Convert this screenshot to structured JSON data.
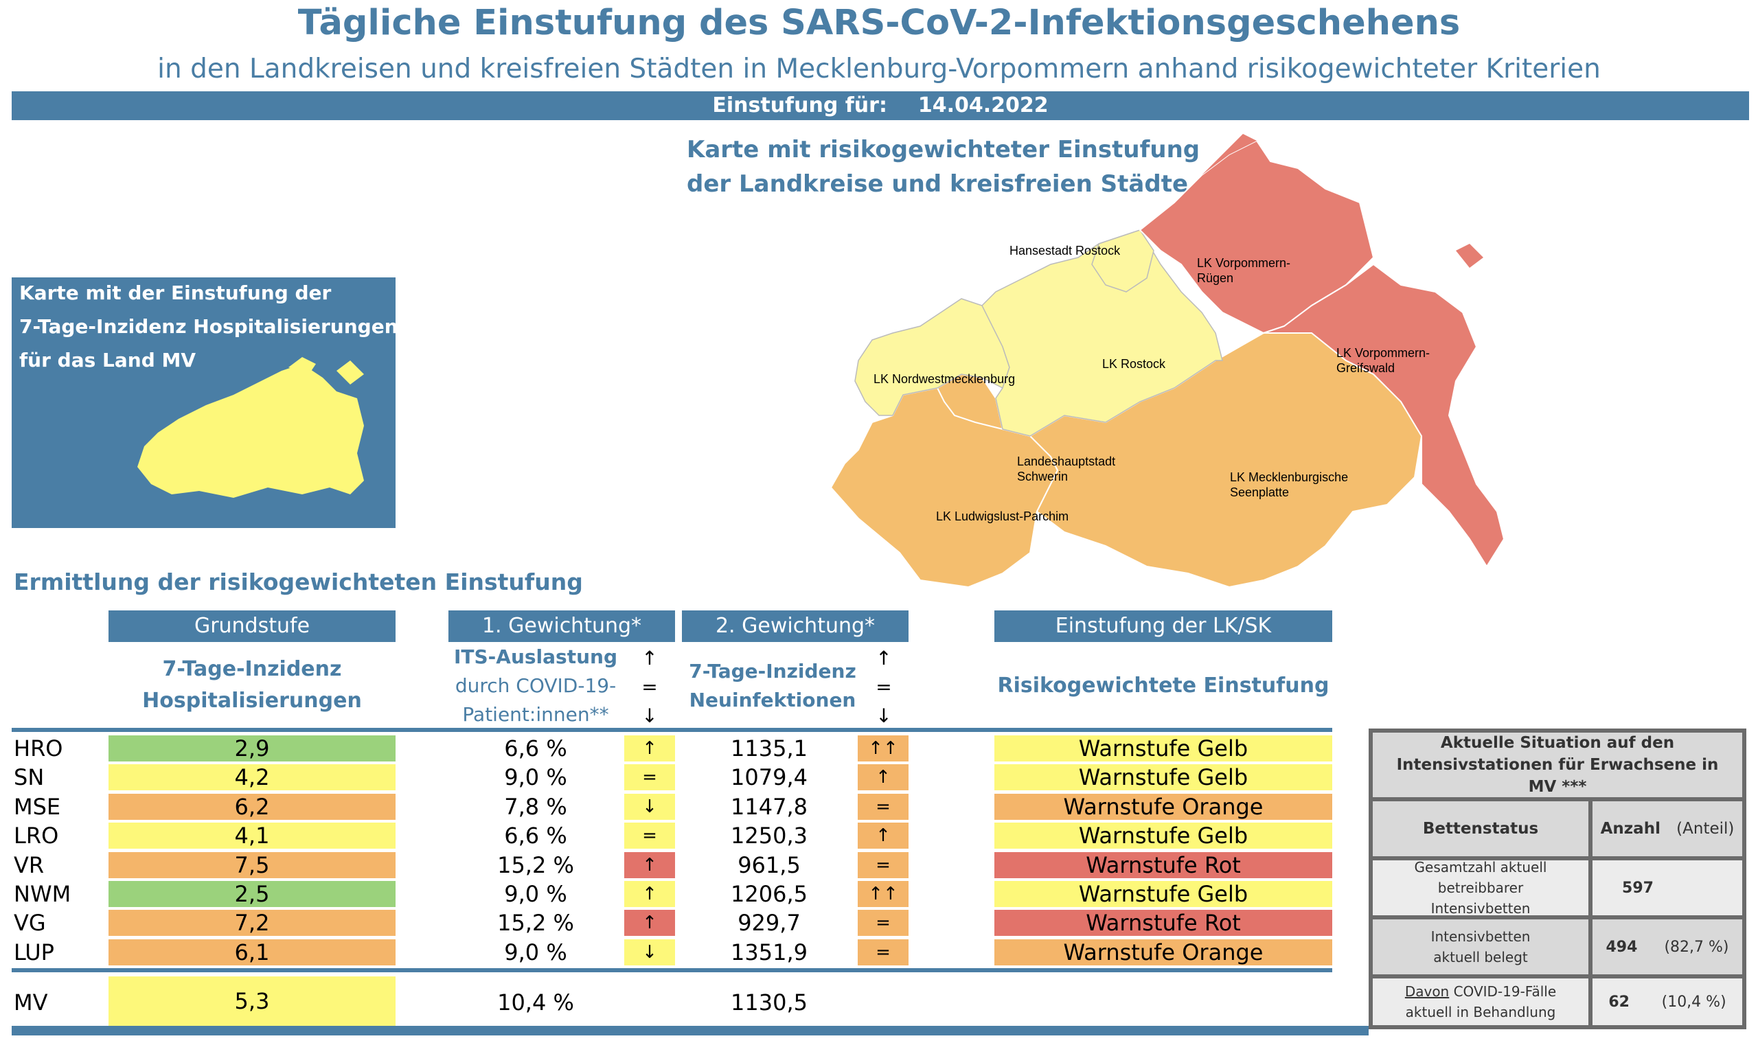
{
  "header": {
    "title": "Tägliche Einstufung des SARS-CoV-2-Infektionsgeschehens",
    "subtitle": "in den Landkreisen und kreisfreien Städten in Mecklenburg-Vorpommern anhand risikogewichteter Kriterien",
    "date_label": "Einstufung für:",
    "date_value": "14.04.2022"
  },
  "risk_map": {
    "title_line1": "Karte mit risikogewichteter Einstufung",
    "title_line2": "der Landkreise und kreisfreien Städte",
    "labels": {
      "hro": "Hansestadt Rostock",
      "vr1": "LK Vorpommern-",
      "vr2": "Rügen",
      "nwm": "LK Nordwestmecklenburg",
      "lro": "LK Rostock",
      "vg1": "LK Vorpommern-",
      "vg2": "Greifswald",
      "sn1": "Landeshauptstadt",
      "sn2": "Schwerin",
      "mse1": "LK Mecklenburgische",
      "mse2": "Seenplatte",
      "lup": "LK Ludwigslust-Parchim"
    }
  },
  "hosp_map": {
    "line1": "Karte mit der Einstufung der",
    "line2": "7-Tage-Inzidenz Hospitalisierungen",
    "line3": "für das Land MV"
  },
  "table": {
    "section_title": "Ermittlung der risikogewichteten Einstufung",
    "col_grundstufe": "Grundstufe",
    "col_gew1": "1. Gewichtung*",
    "col_gew2": "2. Gewichtung*",
    "col_einstufung": "Einstufung der LK/SK",
    "sub_grund1": "7-Tage-Inzidenz",
    "sub_grund2": "Hospitalisierungen",
    "sub_gew1_1": "ITS-Auslastung",
    "sub_gew1_2": "durch COVID-19-",
    "sub_gew1_3": "Patient:innen**",
    "sub_gew2_1": "7-Tage-Inzidenz",
    "sub_gew2_2": "Neuinfektionen",
    "sub_einst": "Risikogewichtete Einstufung",
    "legend_up": "↑",
    "legend_eq": "=",
    "legend_down": "↓",
    "rows": [
      {
        "name": "HRO",
        "hosp": "2,9",
        "its": "6,6 %",
        "its_trend": "↑",
        "inz": "1135,1",
        "inz_trend": "↑↑",
        "stufe": "Warnstufe Gelb"
      },
      {
        "name": "SN",
        "hosp": "4,2",
        "its": "9,0 %",
        "its_trend": "=",
        "inz": "1079,4",
        "inz_trend": "↑",
        "stufe": "Warnstufe Gelb"
      },
      {
        "name": "MSE",
        "hosp": "6,2",
        "its": "7,8 %",
        "its_trend": "↓",
        "inz": "1147,8",
        "inz_trend": "=",
        "stufe": "Warnstufe Orange"
      },
      {
        "name": "LRO",
        "hosp": "4,1",
        "its": "6,6 %",
        "its_trend": "=",
        "inz": "1250,3",
        "inz_trend": "↑",
        "stufe": "Warnstufe Gelb"
      },
      {
        "name": "VR",
        "hosp": "7,5",
        "its": "15,2 %",
        "its_trend": "↑",
        "inz": "961,5",
        "inz_trend": "=",
        "stufe": "Warnstufe Rot"
      },
      {
        "name": "NWM",
        "hosp": "2,5",
        "its": "9,0 %",
        "its_trend": "↑",
        "inz": "1206,5",
        "inz_trend": "↑↑",
        "stufe": "Warnstufe Gelb"
      },
      {
        "name": "VG",
        "hosp": "7,2",
        "its": "15,2 %",
        "its_trend": "↑",
        "inz": "929,7",
        "inz_trend": "=",
        "stufe": "Warnstufe Rot"
      },
      {
        "name": "LUP",
        "hosp": "6,1",
        "its": "9,0 %",
        "its_trend": "↓",
        "inz": "1351,9",
        "inz_trend": "=",
        "stufe": "Warnstufe Orange"
      }
    ],
    "total": {
      "name": "MV",
      "hosp": "5,3",
      "its": "10,4 %",
      "inz": "1130,5"
    }
  },
  "icu": {
    "title": "Aktuelle Situation auf den Intensivstationen für Erwachsene in MV ***",
    "col_status": "Bettenstatus",
    "col_anzahl": "Anzahl",
    "col_anteil": "(Anteil)",
    "r1_label_1": "Gesamtzahl aktuell betreibbarer",
    "r1_label_2": "Intensivbetten",
    "r1_value": "597",
    "r1_share": "",
    "r2_label_1": "Intensivbetten",
    "r2_label_2": "aktuell belegt",
    "r2_value": "494",
    "r2_share": "(82,7 %)",
    "r3_label_1a": "Davon",
    "r3_label_1b": " COVID-19-Fälle",
    "r3_label_2": "aktuell in Behandlung",
    "r3_value": "62",
    "r3_share": "(10,4 %)"
  },
  "colors": {
    "accent": "#4a7ea5",
    "green": "#9bd27c",
    "yellow": "#fdf87a",
    "orange": "#f4b56a",
    "red": "#e2736a",
    "map_yellow": "#fdf7a0",
    "map_orange": "#f4be6e",
    "map_red": "#e57e72"
  }
}
